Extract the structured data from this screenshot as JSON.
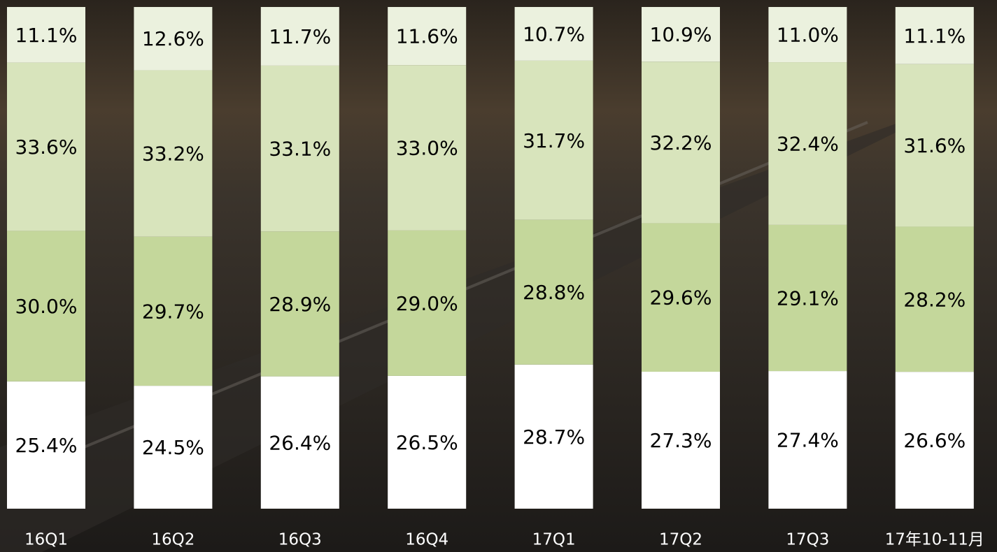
{
  "chart_data": {
    "type": "bar",
    "stacking": "percent",
    "categories": [
      "16Q1",
      "16Q2",
      "16Q3",
      "16Q4",
      "17Q1",
      "17Q2",
      "17Q3",
      "17年10-11月"
    ],
    "series": [
      {
        "color": "#ffffff",
        "values": [
          25.4,
          24.5,
          26.4,
          26.5,
          28.7,
          27.3,
          27.4,
          26.6
        ],
        "value_labels": [
          "25.4%",
          "24.5%",
          "26.4%",
          "26.5%",
          "28.7%",
          "27.3%",
          "27.4%",
          "26.6%"
        ]
      },
      {
        "color": "#c4d79b",
        "values": [
          30.0,
          29.7,
          28.9,
          29.0,
          28.8,
          29.6,
          29.1,
          28.2
        ],
        "value_labels": [
          "30.0%",
          "29.7%",
          "28.9%",
          "29.0%",
          "28.8%",
          "29.6%",
          "29.1%",
          "28.2%"
        ]
      },
      {
        "color": "#d8e4bc",
        "values": [
          33.6,
          33.2,
          33.1,
          33.0,
          31.7,
          32.2,
          32.4,
          31.6
        ],
        "value_labels": [
          "33.6%",
          "33.2%",
          "33.1%",
          "33.0%",
          "31.7%",
          "32.2%",
          "32.4%",
          "31.6%"
        ]
      },
      {
        "color": "#ebf1de",
        "values": [
          11.1,
          12.6,
          11.7,
          11.6,
          10.7,
          10.9,
          11.0,
          11.1
        ],
        "value_labels": [
          "11.1%",
          "12.6%",
          "11.7%",
          "11.6%",
          "10.7%",
          "10.9%",
          "11.0%",
          "11.1%"
        ]
      }
    ]
  }
}
